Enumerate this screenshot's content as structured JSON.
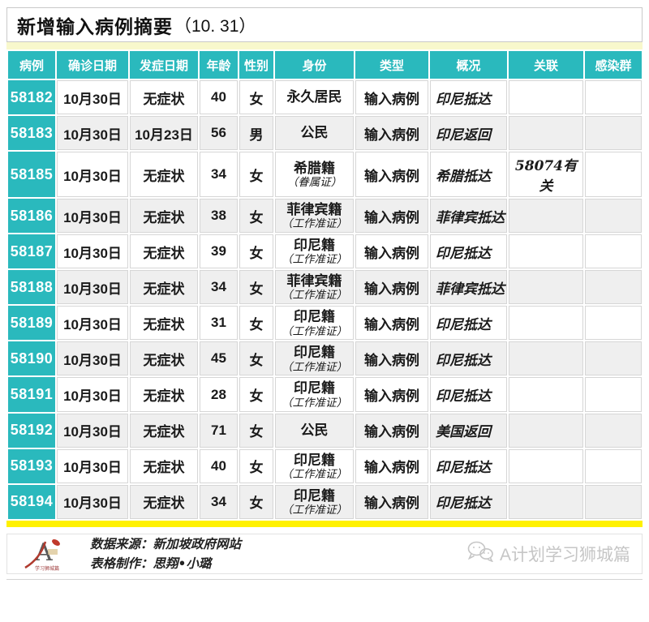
{
  "page": {
    "title_main": "新增输入病例摘要",
    "title_date": "（10. 31）"
  },
  "table": {
    "headers": [
      "病例",
      "确诊日期",
      "发症日期",
      "年龄",
      "性别",
      "身份",
      "类型",
      "概况",
      "关联",
      "感染群"
    ],
    "rows": [
      {
        "case": "58182",
        "confirmed": "10月30日",
        "onset": "无症状",
        "age": "40",
        "gender": "女",
        "identity": "永久居民",
        "identity_note": "",
        "type": "输入病例",
        "summary": "印尼抵达",
        "related": "",
        "cluster": ""
      },
      {
        "case": "58183",
        "confirmed": "10月30日",
        "onset": "10月23日",
        "age": "56",
        "gender": "男",
        "identity": "公民",
        "identity_note": "",
        "type": "输入病例",
        "summary": "印尼返回",
        "related": "",
        "cluster": ""
      },
      {
        "case": "58185",
        "confirmed": "10月30日",
        "onset": "无症状",
        "age": "34",
        "gender": "女",
        "identity": "希腊籍",
        "identity_note": "（眷属证）",
        "type": "输入病例",
        "summary": "希腊抵达",
        "related": "58074有关",
        "cluster": ""
      },
      {
        "case": "58186",
        "confirmed": "10月30日",
        "onset": "无症状",
        "age": "38",
        "gender": "女",
        "identity": "菲律宾籍",
        "identity_note": "（工作准证）",
        "type": "输入病例",
        "summary": "菲律宾抵达",
        "related": "",
        "cluster": ""
      },
      {
        "case": "58187",
        "confirmed": "10月30日",
        "onset": "无症状",
        "age": "39",
        "gender": "女",
        "identity": "印尼籍",
        "identity_note": "（工作准证）",
        "type": "输入病例",
        "summary": "印尼抵达",
        "related": "",
        "cluster": ""
      },
      {
        "case": "58188",
        "confirmed": "10月30日",
        "onset": "无症状",
        "age": "34",
        "gender": "女",
        "identity": "菲律宾籍",
        "identity_note": "（工作准证）",
        "type": "输入病例",
        "summary": "菲律宾抵达",
        "related": "",
        "cluster": ""
      },
      {
        "case": "58189",
        "confirmed": "10月30日",
        "onset": "无症状",
        "age": "31",
        "gender": "女",
        "identity": "印尼籍",
        "identity_note": "（工作准证）",
        "type": "输入病例",
        "summary": "印尼抵达",
        "related": "",
        "cluster": ""
      },
      {
        "case": "58190",
        "confirmed": "10月30日",
        "onset": "无症状",
        "age": "45",
        "gender": "女",
        "identity": "印尼籍",
        "identity_note": "（工作准证）",
        "type": "输入病例",
        "summary": "印尼抵达",
        "related": "",
        "cluster": ""
      },
      {
        "case": "58191",
        "confirmed": "10月30日",
        "onset": "无症状",
        "age": "28",
        "gender": "女",
        "identity": "印尼籍",
        "identity_note": "（工作准证）",
        "type": "输入病例",
        "summary": "印尼抵达",
        "related": "",
        "cluster": ""
      },
      {
        "case": "58192",
        "confirmed": "10月30日",
        "onset": "无症状",
        "age": "71",
        "gender": "女",
        "identity": "公民",
        "identity_note": "",
        "type": "输入病例",
        "summary": "美国返回",
        "related": "",
        "cluster": ""
      },
      {
        "case": "58193",
        "confirmed": "10月30日",
        "onset": "无症状",
        "age": "40",
        "gender": "女",
        "identity": "印尼籍",
        "identity_note": "（工作准证）",
        "type": "输入病例",
        "summary": "印尼抵达",
        "related": "",
        "cluster": ""
      },
      {
        "case": "58194",
        "confirmed": "10月30日",
        "onset": "无症状",
        "age": "34",
        "gender": "女",
        "identity": "印尼籍",
        "identity_note": "（工作准证）",
        "type": "输入病例",
        "summary": "印尼抵达",
        "related": "",
        "cluster": ""
      }
    ]
  },
  "footer": {
    "logo_letter": "A",
    "logo_caption": "学习狮城篇",
    "source_line": "数据来源：新加坡政府网站",
    "maker_line": "表格制作：思翔•小璐",
    "watermark": "A计划学习狮城篇"
  },
  "colors": {
    "teal": "#2ab9bd",
    "pale_yellow_strip": "#f8f8cc",
    "bright_yellow_strip": "#fff100",
    "alt_row": "#efefef",
    "grid": "#d6d6d6",
    "watermark_gray": "#c6c6c6"
  },
  "chart_data": {
    "type": "table",
    "title": "新增输入病例摘要（10. 31）",
    "columns": [
      "病例",
      "确诊日期",
      "发症日期",
      "年龄",
      "性别",
      "身份",
      "类型",
      "概况",
      "关联",
      "感染群"
    ],
    "rows": [
      [
        "58182",
        "10月30日",
        "无症状",
        "40",
        "女",
        "永久居民",
        "输入病例",
        "印尼抵达",
        "",
        ""
      ],
      [
        "58183",
        "10月30日",
        "10月23日",
        "56",
        "男",
        "公民",
        "输入病例",
        "印尼返回",
        "",
        ""
      ],
      [
        "58185",
        "10月30日",
        "无症状",
        "34",
        "女",
        "希腊籍（眷属证）",
        "输入病例",
        "希腊抵达",
        "58074有关",
        ""
      ],
      [
        "58186",
        "10月30日",
        "无症状",
        "38",
        "女",
        "菲律宾籍（工作准证）",
        "输入病例",
        "菲律宾抵达",
        "",
        ""
      ],
      [
        "58187",
        "10月30日",
        "无症状",
        "39",
        "女",
        "印尼籍（工作准证）",
        "输入病例",
        "印尼抵达",
        "",
        ""
      ],
      [
        "58188",
        "10月30日",
        "无症状",
        "34",
        "女",
        "菲律宾籍（工作准证）",
        "输入病例",
        "菲律宾抵达",
        "",
        ""
      ],
      [
        "58189",
        "10月30日",
        "无症状",
        "31",
        "女",
        "印尼籍（工作准证）",
        "输入病例",
        "印尼抵达",
        "",
        ""
      ],
      [
        "58190",
        "10月30日",
        "无症状",
        "45",
        "女",
        "印尼籍（工作准证）",
        "输入病例",
        "印尼抵达",
        "",
        ""
      ],
      [
        "58191",
        "10月30日",
        "无症状",
        "28",
        "女",
        "印尼籍（工作准证）",
        "输入病例",
        "印尼抵达",
        "",
        ""
      ],
      [
        "58192",
        "10月30日",
        "无症状",
        "71",
        "女",
        "公民",
        "输入病例",
        "美国返回",
        "",
        ""
      ],
      [
        "58193",
        "10月30日",
        "无症状",
        "40",
        "女",
        "印尼籍（工作准证）",
        "输入病例",
        "印尼抵达",
        "",
        ""
      ],
      [
        "58194",
        "10月30日",
        "无症状",
        "34",
        "女",
        "印尼籍（工作准证）",
        "输入病例",
        "印尼抵达",
        "",
        ""
      ]
    ]
  }
}
